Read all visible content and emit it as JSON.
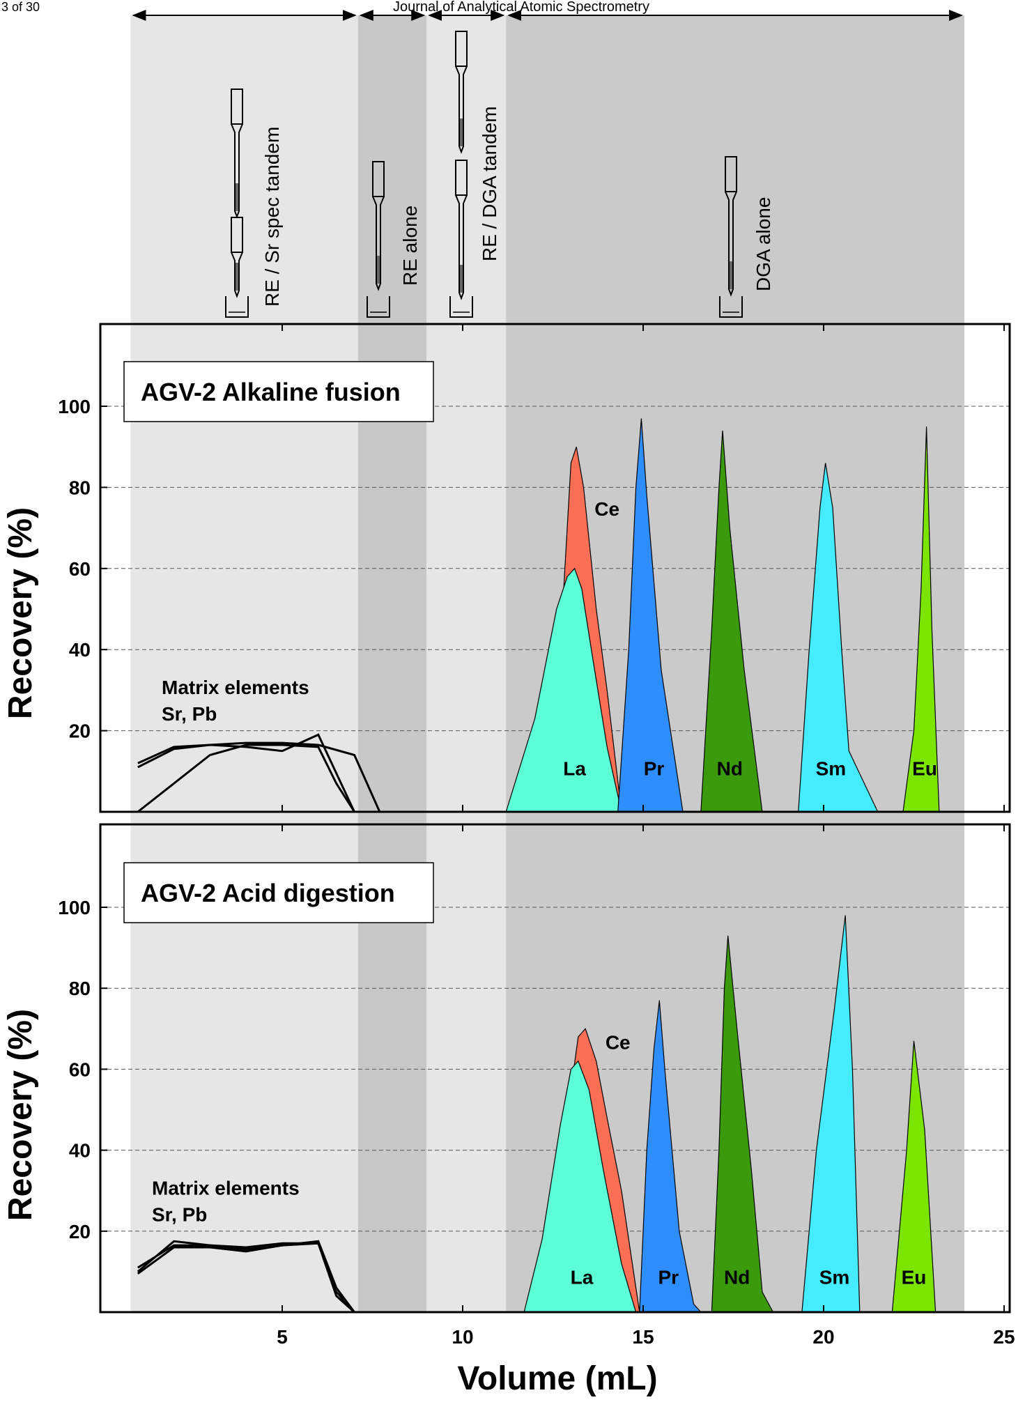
{
  "page": {
    "page_number": "3 of 30",
    "journal": "Journal of Analytical Atomic Spectrometry"
  },
  "stages": [
    {
      "key": "re-sr",
      "label": "RE / Sr spec tandem",
      "x_range": [
        0.8,
        7.1
      ],
      "fill": "#e6e6e6"
    },
    {
      "key": "re",
      "label": "RE alone",
      "x_range": [
        7.1,
        9.0
      ],
      "fill": "#c8c8c8"
    },
    {
      "key": "re-dga",
      "label": "RE / DGA tandem",
      "x_range": [
        9.0,
        11.2
      ],
      "fill": "#e6e6e6"
    },
    {
      "key": "dga",
      "label": "DGA alone",
      "x_range": [
        11.2,
        23.9
      ],
      "fill": "#cacaca"
    }
  ],
  "chart_data": [
    {
      "type": "area",
      "title": "AGV-2 Alkaline fusion",
      "xlabel": "Volume (mL)",
      "ylabel": "Recovery (%)",
      "xlim": [
        0,
        25
      ],
      "ylim": [
        0,
        120
      ],
      "x_ticks": [
        5,
        10,
        15,
        20,
        25
      ],
      "y_ticks": [
        20,
        40,
        60,
        80,
        100
      ],
      "grid": "dashed horizontal",
      "annotation": {
        "line1": "Matrix elements",
        "line2": "Sr, Pb"
      },
      "matrix_lines": [
        [
          [
            1.0,
            11
          ],
          [
            2.0,
            15.5
          ],
          [
            3.0,
            16.5
          ],
          [
            4.0,
            17
          ],
          [
            5.0,
            17
          ],
          [
            6.0,
            16.5
          ],
          [
            7.0,
            14
          ],
          [
            7.7,
            0
          ]
        ],
        [
          [
            1.0,
            12
          ],
          [
            2.0,
            16
          ],
          [
            3.0,
            16.5
          ],
          [
            4.0,
            16
          ],
          [
            5.0,
            15
          ],
          [
            6.0,
            19
          ],
          [
            7.0,
            0
          ]
        ],
        [
          [
            1.0,
            0
          ],
          [
            2.0,
            7
          ],
          [
            3.0,
            14
          ],
          [
            4.0,
            16.5
          ],
          [
            5.0,
            16.5
          ],
          [
            6.0,
            16
          ],
          [
            6.5,
            7
          ],
          [
            7.0,
            0
          ]
        ]
      ],
      "series": [
        {
          "name": "Ce",
          "color": "#fb6f55",
          "label_pos": [
            14.0,
            73
          ],
          "points": [
            [
              12.5,
              0
            ],
            [
              12.8,
              55
            ],
            [
              13.0,
              86
            ],
            [
              13.15,
              90
            ],
            [
              13.35,
              80
            ],
            [
              13.7,
              50
            ],
            [
              14.0,
              30
            ],
            [
              14.4,
              0
            ]
          ]
        },
        {
          "name": "La",
          "color": "#5cffd6",
          "label_pos": [
            13.1,
            9
          ],
          "points": [
            [
              11.2,
              0
            ],
            [
              12.0,
              23
            ],
            [
              12.6,
              50
            ],
            [
              12.9,
              58
            ],
            [
              13.1,
              60
            ],
            [
              13.3,
              55
            ],
            [
              13.6,
              38
            ],
            [
              14.0,
              16
            ],
            [
              14.4,
              0
            ]
          ]
        },
        {
          "name": "Pr",
          "color": "#2f8efd",
          "label_pos": [
            15.3,
            9
          ],
          "points": [
            [
              14.3,
              0
            ],
            [
              14.6,
              40
            ],
            [
              14.8,
              80
            ],
            [
              14.95,
              97
            ],
            [
              15.1,
              78
            ],
            [
              15.5,
              35
            ],
            [
              16.1,
              0
            ]
          ]
        },
        {
          "name": "Nd",
          "color": "#3a9a0c",
          "label_pos": [
            17.4,
            9
          ],
          "points": [
            [
              16.6,
              0
            ],
            [
              16.9,
              45
            ],
            [
              17.1,
              80
            ],
            [
              17.2,
              94
            ],
            [
              17.4,
              70
            ],
            [
              17.8,
              35
            ],
            [
              18.3,
              0
            ]
          ]
        },
        {
          "name": "Sm",
          "color": "#45ecff",
          "label_pos": [
            20.2,
            9
          ],
          "points": [
            [
              19.3,
              0
            ],
            [
              19.6,
              40
            ],
            [
              19.9,
              75
            ],
            [
              20.05,
              86
            ],
            [
              20.25,
              75
            ],
            [
              20.5,
              40
            ],
            [
              20.7,
              15
            ],
            [
              21.5,
              0
            ]
          ]
        },
        {
          "name": "Eu",
          "color": "#7be500",
          "label_pos": [
            22.8,
            9
          ],
          "points": [
            [
              22.2,
              0
            ],
            [
              22.5,
              20
            ],
            [
              22.7,
              55
            ],
            [
              22.85,
              95
            ],
            [
              23.0,
              45
            ],
            [
              23.2,
              0
            ]
          ]
        }
      ]
    },
    {
      "type": "area",
      "title": "AGV-2 Acid digestion",
      "xlabel": "Volume (mL)",
      "ylabel": "Recovery (%)",
      "xlim": [
        0,
        25
      ],
      "ylim": [
        0,
        120
      ],
      "x_ticks": [
        5,
        10,
        15,
        20,
        25
      ],
      "y_ticks": [
        20,
        40,
        60,
        80,
        100
      ],
      "grid": "dashed horizontal",
      "annotation": {
        "line1": "Matrix elements",
        "line2": "Sr, Pb"
      },
      "matrix_lines": [
        [
          [
            1.0,
            10
          ],
          [
            2.0,
            17.5
          ],
          [
            3.0,
            16.5
          ],
          [
            4.0,
            16
          ],
          [
            5.0,
            17
          ],
          [
            6.0,
            17
          ],
          [
            6.5,
            5
          ],
          [
            7.0,
            0
          ]
        ],
        [
          [
            1.0,
            9.5
          ],
          [
            2.0,
            16
          ],
          [
            3.0,
            16
          ],
          [
            4.0,
            15
          ],
          [
            5.0,
            16.5
          ],
          [
            6.0,
            17
          ],
          [
            6.5,
            4
          ],
          [
            7.0,
            0
          ]
        ],
        [
          [
            1.0,
            11
          ],
          [
            2.0,
            16.5
          ],
          [
            3.0,
            16.5
          ],
          [
            4.0,
            15.5
          ],
          [
            5.0,
            16.5
          ],
          [
            6.0,
            17.5
          ],
          [
            6.5,
            6
          ],
          [
            7.0,
            0
          ]
        ]
      ],
      "series": [
        {
          "name": "Ce",
          "color": "#fb6f55",
          "label_pos": [
            14.3,
            65
          ],
          "points": [
            [
              12.8,
              0
            ],
            [
              13.0,
              55
            ],
            [
              13.2,
              68
            ],
            [
              13.4,
              70
            ],
            [
              13.7,
              62
            ],
            [
              14.0,
              48
            ],
            [
              14.4,
              30
            ],
            [
              14.9,
              0
            ]
          ]
        },
        {
          "name": "La",
          "color": "#5cffd6",
          "label_pos": [
            13.3,
            7
          ],
          "points": [
            [
              11.7,
              0
            ],
            [
              12.2,
              18
            ],
            [
              12.7,
              46
            ],
            [
              13.0,
              60
            ],
            [
              13.2,
              62
            ],
            [
              13.5,
              55
            ],
            [
              13.9,
              35
            ],
            [
              14.4,
              12
            ],
            [
              14.8,
              0
            ]
          ]
        },
        {
          "name": "Pr",
          "color": "#2f8efd",
          "label_pos": [
            15.7,
            7
          ],
          "points": [
            [
              14.9,
              0
            ],
            [
              15.1,
              40
            ],
            [
              15.3,
              65
            ],
            [
              15.45,
              77
            ],
            [
              15.6,
              60
            ],
            [
              16.0,
              20
            ],
            [
              16.4,
              2
            ],
            [
              16.6,
              0
            ]
          ]
        },
        {
          "name": "Nd",
          "color": "#3a9a0c",
          "label_pos": [
            17.6,
            7
          ],
          "points": [
            [
              16.9,
              0
            ],
            [
              17.1,
              40
            ],
            [
              17.25,
              80
            ],
            [
              17.35,
              93
            ],
            [
              17.6,
              70
            ],
            [
              18.0,
              35
            ],
            [
              18.3,
              5
            ],
            [
              18.6,
              0
            ]
          ]
        },
        {
          "name": "Sm",
          "color": "#45ecff",
          "label_pos": [
            20.3,
            7
          ],
          "points": [
            [
              19.4,
              0
            ],
            [
              19.8,
              40
            ],
            [
              20.3,
              75
            ],
            [
              20.6,
              98
            ],
            [
              20.8,
              60
            ],
            [
              21.0,
              0
            ]
          ]
        },
        {
          "name": "Eu",
          "color": "#7be500",
          "label_pos": [
            22.5,
            7
          ],
          "points": [
            [
              21.9,
              0
            ],
            [
              22.3,
              40
            ],
            [
              22.5,
              67
            ],
            [
              22.8,
              45
            ],
            [
              23.1,
              0
            ]
          ]
        }
      ]
    }
  ]
}
